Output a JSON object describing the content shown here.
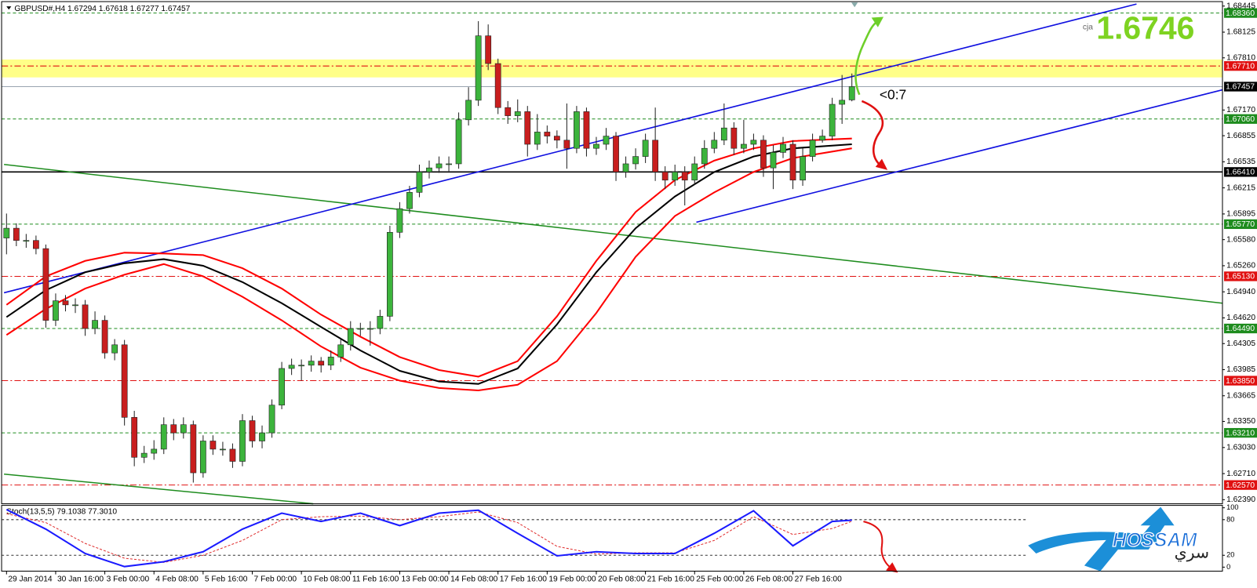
{
  "chart_data": {
    "type": "candlestick",
    "title": "GBPUSD#,H4  1.67294 1.67618 1.67277 1.67457",
    "xlim": [
      -0.5,
      123.7
    ],
    "ylim": [
      1.6234,
      1.6849
    ],
    "yticks": [
      1.68445,
      1.68125,
      {
        "value": 1.6781,
        "label": "1.67810"
      },
      {
        "value": 1.6717,
        "label": "1.67170"
      },
      1.66855,
      1.66535,
      1.66215,
      1.65895,
      {
        "value": 1.6558,
        "label": "1.65580"
      },
      {
        "value": 1.6526,
        "label": "1.65260"
      },
      {
        "value": 1.6494,
        "label": "1.64940"
      },
      {
        "value": 1.6462,
        "label": "1.64620"
      },
      1.64305,
      1.63985,
      1.63665,
      {
        "value": 1.6335,
        "label": "1.63350"
      },
      {
        "value": 1.6303,
        "label": "1.63030"
      },
      {
        "value": 1.6271,
        "label": "1.62710"
      },
      {
        "value": 1.6239,
        "label": "1.62390"
      }
    ],
    "xticks": [
      {
        "value": 0,
        "label": "29 Jan 2014"
      },
      {
        "value": 5,
        "label": "30 Jan 16:00"
      },
      {
        "value": 10,
        "label": "3 Feb 00:00"
      },
      {
        "value": 15,
        "label": "4 Feb 08:00"
      },
      {
        "value": 20,
        "label": "5 Feb 16:00"
      },
      {
        "value": 25,
        "label": "7 Feb 00:00"
      },
      {
        "value": 30,
        "label": "10 Feb 08:00"
      },
      {
        "value": 35,
        "label": "11 Feb 16:00"
      },
      {
        "value": 40,
        "label": "13 Feb 00:00"
      },
      {
        "value": 45,
        "label": "14 Feb 08:00"
      },
      {
        "value": 50,
        "label": "17 Feb 16:00"
      },
      {
        "value": 55,
        "label": "19 Feb 00:00"
      },
      {
        "value": 60,
        "label": "20 Feb 08:00"
      },
      {
        "value": 65,
        "label": "21 Feb 16:00"
      },
      {
        "value": 70,
        "label": "25 Feb 00:00"
      },
      {
        "value": 75,
        "label": "26 Feb 08:00"
      },
      {
        "value": 80,
        "label": "27 Feb 16:00"
      }
    ],
    "up_color": "#3cb43c",
    "down_color": "#c81e1e",
    "candles": {
      "open": [
        1.656,
        1.6572,
        1.6557,
        1.6557,
        1.6547,
        1.6459,
        1.6483,
        1.6478,
        1.6478,
        1.6449,
        1.6459,
        1.6419,
        1.6429,
        1.634,
        1.6291,
        1.6296,
        1.6301,
        1.6331,
        1.6321,
        1.6331,
        1.6272,
        1.6311,
        1.6301,
        1.6301,
        1.6286,
        1.6336,
        1.6311,
        1.6321,
        1.6355,
        1.64,
        1.6404,
        1.6404,
        1.6409,
        1.6404,
        1.6414,
        1.6429,
        1.6449,
        1.6449,
        1.6449,
        1.6464,
        1.6567,
        1.6596,
        1.6616,
        1.6641,
        1.6646,
        1.6651,
        1.6651,
        1.6705,
        1.6729,
        1.6808,
        1.6774,
        1.672,
        1.671,
        1.6715,
        1.6675,
        1.669,
        1.6685,
        1.668,
        1.667,
        1.6715,
        1.667,
        1.6675,
        1.6685,
        1.6641,
        1.6651,
        1.666,
        1.668,
        1.6641,
        1.6631,
        1.6641,
        1.6631,
        1.6651,
        1.667,
        1.668,
        1.6695,
        1.667,
        1.6675,
        1.668,
        1.6646,
        1.6665,
        1.6675,
        1.6631,
        1.666,
        1.668,
        1.6685,
        1.6724,
        1.67294
      ],
      "high": [
        1.659,
        1.6578,
        1.6565,
        1.6563,
        1.6552,
        1.6492,
        1.649,
        1.6486,
        1.6484,
        1.647,
        1.6465,
        1.6436,
        1.6435,
        1.6348,
        1.6305,
        1.6312,
        1.634,
        1.6338,
        1.634,
        1.6336,
        1.6318,
        1.6318,
        1.631,
        1.6308,
        1.6344,
        1.6342,
        1.633,
        1.6362,
        1.6408,
        1.6412,
        1.6411,
        1.6416,
        1.6414,
        1.6422,
        1.6436,
        1.6458,
        1.6456,
        1.6458,
        1.6472,
        1.6575,
        1.6604,
        1.6624,
        1.665,
        1.6655,
        1.666,
        1.666,
        1.6714,
        1.6745,
        1.6826,
        1.6822,
        1.678,
        1.6728,
        1.673,
        1.6722,
        1.6712,
        1.6698,
        1.6692,
        1.6725,
        1.6722,
        1.672,
        1.6684,
        1.6695,
        1.669,
        1.666,
        1.667,
        1.6688,
        1.672,
        1.6648,
        1.665,
        1.6648,
        1.666,
        1.668,
        1.669,
        1.6725,
        1.6702,
        1.6705,
        1.6688,
        1.6686,
        1.6674,
        1.6684,
        1.668,
        1.667,
        1.6688,
        1.6693,
        1.6732,
        1.676,
        1.67618
      ],
      "low": [
        1.654,
        1.655,
        1.6548,
        1.654,
        1.645,
        1.6452,
        1.647,
        1.6468,
        1.644,
        1.6442,
        1.6412,
        1.641,
        1.633,
        1.628,
        1.6284,
        1.6288,
        1.6295,
        1.6312,
        1.6314,
        1.626,
        1.6266,
        1.6294,
        1.6293,
        1.6278,
        1.628,
        1.6303,
        1.6302,
        1.6315,
        1.635,
        1.6392,
        1.6385,
        1.6396,
        1.6395,
        1.6398,
        1.6408,
        1.6422,
        1.644,
        1.6428,
        1.6442,
        1.6458,
        1.656,
        1.659,
        1.661,
        1.6633,
        1.664,
        1.6642,
        1.6645,
        1.6698,
        1.6722,
        1.6766,
        1.6712,
        1.67,
        1.6702,
        1.666,
        1.6668,
        1.6676,
        1.667,
        1.6645,
        1.6664,
        1.666,
        1.6662,
        1.6668,
        1.663,
        1.6634,
        1.6644,
        1.6652,
        1.663,
        1.662,
        1.6624,
        1.66,
        1.6625,
        1.6645,
        1.6664,
        1.6674,
        1.6662,
        1.6664,
        1.6668,
        1.6635,
        1.662,
        1.6658,
        1.662,
        1.6624,
        1.6654,
        1.6677,
        1.668,
        1.67,
        1.67277
      ],
      "close": [
        1.6572,
        1.6557,
        1.6557,
        1.6547,
        1.6459,
        1.6483,
        1.6478,
        1.6478,
        1.6449,
        1.6459,
        1.6419,
        1.6429,
        1.634,
        1.6291,
        1.6296,
        1.6301,
        1.6331,
        1.6321,
        1.6331,
        1.6272,
        1.6311,
        1.6301,
        1.6301,
        1.6286,
        1.6336,
        1.6311,
        1.6321,
        1.6355,
        1.64,
        1.6404,
        1.6404,
        1.6409,
        1.6404,
        1.6414,
        1.6429,
        1.6449,
        1.6449,
        1.6449,
        1.6464,
        1.6567,
        1.6596,
        1.6616,
        1.6641,
        1.6646,
        1.6651,
        1.6651,
        1.6705,
        1.6729,
        1.6808,
        1.6774,
        1.672,
        1.671,
        1.6715,
        1.6675,
        1.669,
        1.6685,
        1.668,
        1.667,
        1.6715,
        1.667,
        1.6675,
        1.6685,
        1.6641,
        1.6651,
        1.666,
        1.668,
        1.6641,
        1.6631,
        1.6641,
        1.6631,
        1.6651,
        1.667,
        1.668,
        1.6695,
        1.667,
        1.6675,
        1.668,
        1.6646,
        1.6665,
        1.6675,
        1.6631,
        1.666,
        1.668,
        1.6685,
        1.6724,
        1.6729,
        1.67457
      ]
    },
    "lines": [
      {
        "color": "#000000",
        "x": [
          0,
          4,
          8,
          12,
          16,
          20,
          24,
          28,
          32,
          36,
          40,
          44,
          48,
          52,
          56,
          60,
          64,
          68,
          72,
          76,
          80,
          86
        ],
        "values": [
          1.6463,
          1.6496,
          1.6518,
          1.6529,
          1.6534,
          1.6526,
          1.6506,
          1.648,
          1.6451,
          1.6422,
          1.6397,
          1.6384,
          1.6381,
          1.64,
          1.6454,
          1.6518,
          1.6572,
          1.6611,
          1.6641,
          1.666,
          1.667,
          1.6675
        ]
      },
      {
        "color": "#ff0000",
        "x": [
          0,
          4,
          8,
          12,
          16,
          20,
          24,
          28,
          32,
          36,
          40,
          44,
          48,
          52,
          56,
          60,
          64,
          68,
          72,
          76,
          80,
          86
        ],
        "values": [
          1.6478,
          1.6513,
          1.6532,
          1.6542,
          1.6541,
          1.6539,
          1.6523,
          1.6498,
          1.6466,
          1.6439,
          1.6414,
          1.6398,
          1.639,
          1.6409,
          1.6464,
          1.6532,
          1.6592,
          1.6631,
          1.6655,
          1.667,
          1.6679,
          1.6682
        ]
      },
      {
        "color": "#ff0000",
        "x": [
          0,
          4,
          8,
          12,
          16,
          20,
          24,
          28,
          32,
          36,
          40,
          44,
          48,
          52,
          56,
          60,
          64,
          68,
          72,
          76,
          80,
          86
        ],
        "values": [
          1.6441,
          1.6473,
          1.6498,
          1.6515,
          1.6528,
          1.6513,
          1.6488,
          1.6459,
          1.6427,
          1.6401,
          1.6385,
          1.6376,
          1.6373,
          1.638,
          1.6409,
          1.6468,
          1.6537,
          1.6587,
          1.6616,
          1.6641,
          1.6658,
          1.667
        ]
      }
    ],
    "zone": [
      1.6757,
      1.6779
    ],
    "zone_color": "#ffff88",
    "levels": [
      {
        "value": 1.6836,
        "label": "1.68360",
        "color": "#1e8c1e",
        "style": "dash"
      },
      {
        "value": 1.6771,
        "label": "1.67710",
        "color": "#e01010",
        "style": "dashdot"
      },
      {
        "value": 1.67457,
        "label": "1.67457",
        "color": "#000000",
        "style": "current"
      },
      {
        "value": 1.6706,
        "label": "1.67060",
        "color": "#1e8c1e",
        "style": "dash"
      },
      {
        "value": 1.6641,
        "label": "1.66410",
        "color": "#000000",
        "style": "solid"
      },
      {
        "value": 1.6577,
        "label": "1.65770",
        "color": "#1e8c1e",
        "style": "dash"
      },
      {
        "value": 1.6513,
        "label": "1.65130",
        "color": "#e01010",
        "style": "dashdot"
      },
      {
        "value": 1.6449,
        "label": "1.64490",
        "color": "#1e8c1e",
        "style": "dash"
      },
      {
        "value": 1.6385,
        "label": "1.63850",
        "color": "#e01010",
        "style": "dashdot"
      },
      {
        "value": 1.6321,
        "label": "1.63210",
        "color": "#1e8c1e",
        "style": "dash"
      },
      {
        "value": 1.6257,
        "label": "1.62570",
        "color": "#e01010",
        "style": "dashdot"
      }
    ],
    "big_label": "1.6746",
    "note": "<0:7",
    "tag": "cja",
    "stochastic": {
      "title": "Stoch(13,5,5) 79.1038 77.3010",
      "ylim": [
        0,
        100
      ],
      "yticks": [
        0,
        20,
        80,
        100
      ],
      "levels": [
        20,
        80
      ],
      "x": [
        0,
        4,
        8,
        12,
        16,
        20,
        24,
        28,
        32,
        36,
        40,
        44,
        48,
        52,
        56,
        60,
        64,
        68,
        72,
        76,
        80,
        84,
        86
      ],
      "main": {
        "color": "#1a1aff",
        "values": [
          97,
          64,
          23,
          1,
          9,
          26,
          64,
          91,
          77,
          91,
          70,
          91,
          96,
          57,
          19,
          26,
          23,
          23,
          57,
          95,
          36,
          77,
          79.1038
        ]
      },
      "signal": {
        "color": "#e03030",
        "values": [
          90,
          75,
          40,
          15,
          8,
          20,
          45,
          80,
          85,
          86,
          80,
          85,
          93,
          75,
          35,
          22,
          24,
          24,
          45,
          85,
          55,
          65,
          77.301
        ]
      }
    }
  },
  "logo": {
    "text": "HOSSAM",
    "arabic": "سري"
  }
}
